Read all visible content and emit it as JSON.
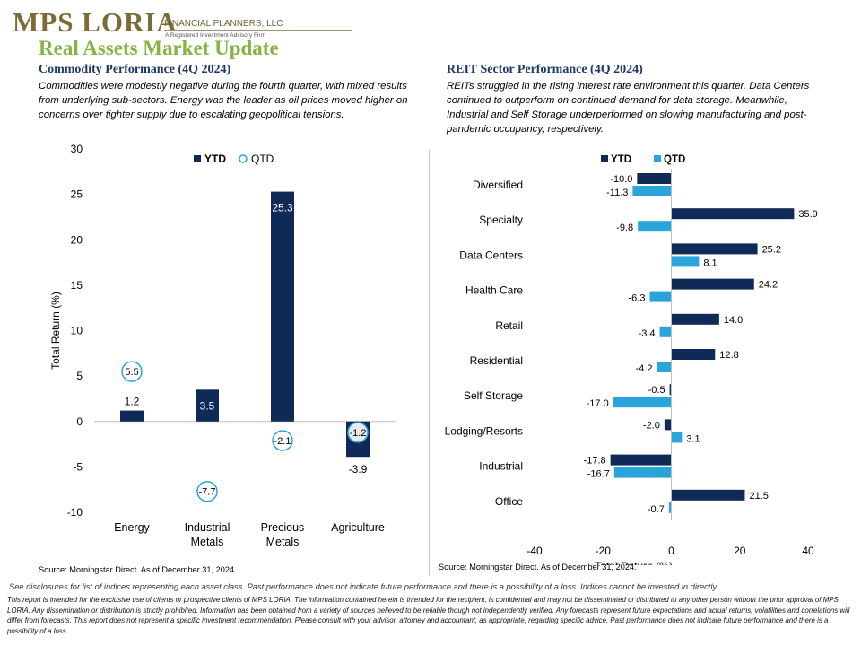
{
  "header": {
    "logo_main": "MPS LORIA",
    "logo_tagline": "FINANCIAL PLANNERS, LLC",
    "logo_sub": "A Registered Investment Advisory Firm",
    "page_title": "Real Assets Market Update"
  },
  "commodity": {
    "title": "Commodity Performance (4Q 2024)",
    "description": "Commodities were modestly negative during the fourth quarter, with mixed results from underlying sub-sectors. Energy was the leader as oil prices moved higher on concerns over tighter supply due to escalating geopolitical tensions.",
    "source": "Source: Morningstar Direct. As of December 31, 2024."
  },
  "reit": {
    "title": "REIT Sector Performance (4Q 2024)",
    "description": "REITs struggled in the rising interest rate environment this quarter. Data Centers continued to outperform on continued demand for data storage. Meanwhile, Industrial and Self Storage underperformed on slowing manufacturing and post-pandemic occupancy, respectively.",
    "source": "Source: Morningstar Direct. As of December 31, 2024."
  },
  "footer": {
    "disclaimer_short": "See disclosures for list of indices representing each asset class. Past performance does not indicate future performance and there is a possibility of a loss. Indices cannot be invested in directly.",
    "disclaimer_long": "This report is intended for the exclusive use of clients or prospective clients of MPS LORIA. The information contained herein is intended for the recipient, is confidential and may not be disseminated or distributed to any other person without the prior approval of MPS LORIA. Any dissemination or distribution is strictly prohibited. Information has been obtained from a variety of sources believed to be reliable though not independently verified. Any forecasts represent future expectations and actual returns; volatilities and correlations will differ from forecasts. This report does not represent a specific investment recommendation. Please consult with your advisor, attorney and accountant, as appropriate, regarding specific advice. Past performance does not indicate future performance and there is a possibility of a loss."
  },
  "colors": {
    "ytd": "#0f2a56",
    "qtd": "#2aa5dc",
    "title_green": "#86b443",
    "heading_navy": "#1f3864"
  },
  "chart_data": [
    {
      "type": "bar",
      "categories": [
        "Energy",
        "Industrial Metals",
        "Precious Metals",
        "Agriculture"
      ],
      "series": [
        {
          "name": "YTD",
          "values": [
            1.2,
            3.5,
            25.3,
            -3.9
          ],
          "style": "bar"
        },
        {
          "name": "QTD",
          "values": [
            5.5,
            -7.7,
            -2.1,
            -1.2
          ],
          "style": "circle-marker"
        }
      ],
      "xlabel": "",
      "ylabel": "Total Return (%)",
      "ylim": [
        -10,
        30
      ],
      "yticks": [
        -10,
        -5,
        0,
        5,
        10,
        15,
        20,
        25,
        30
      ],
      "legend": "top",
      "grid": false
    },
    {
      "type": "bar",
      "orientation": "horizontal",
      "categories": [
        "Diversified",
        "Specialty",
        "Data Centers",
        "Health Care",
        "Retail",
        "Residential",
        "Self Storage",
        "Lodging/Resorts",
        "Industrial",
        "Office"
      ],
      "series": [
        {
          "name": "YTD",
          "values": [
            -10.0,
            35.9,
            25.2,
            24.2,
            14.0,
            12.8,
            -0.5,
            -2.0,
            -17.8,
            21.5
          ]
        },
        {
          "name": "QTD",
          "values": [
            -11.3,
            -9.8,
            8.1,
            -6.3,
            -3.4,
            -4.2,
            -17.0,
            3.1,
            -16.7,
            -0.7
          ]
        }
      ],
      "xlabel": "Total Return (%)",
      "ylabel": "",
      "xlim": [
        -40,
        40
      ],
      "xticks": [
        -40,
        -20,
        0,
        20,
        40
      ],
      "legend": "top",
      "grid": false
    }
  ]
}
